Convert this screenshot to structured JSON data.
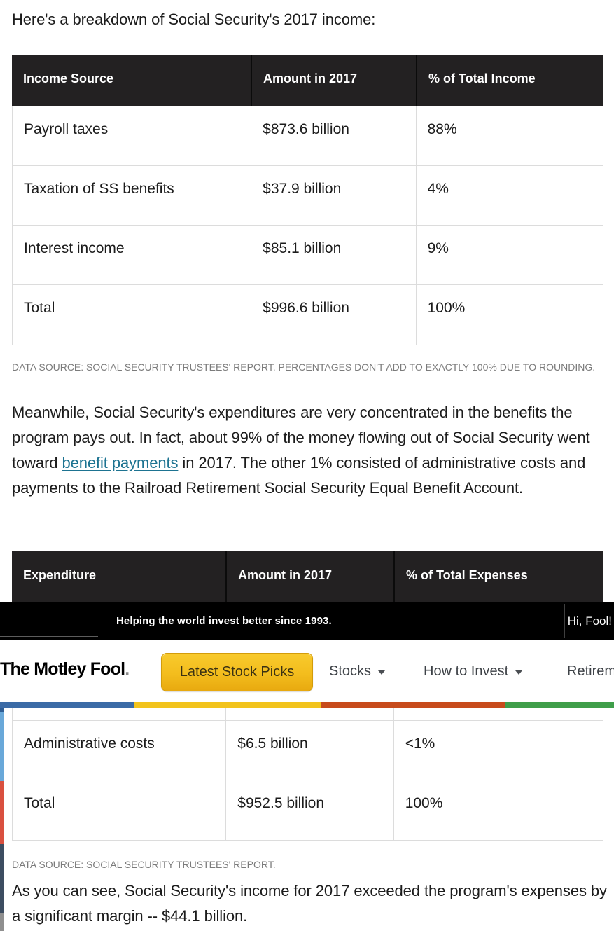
{
  "article": {
    "intro_heading": "Here's a breakdown of Social Security's 2017 income:",
    "expenditure_paragraph": {
      "part1": "Meanwhile, Social Security's expenditures are very concentrated in the benefits the program pays out. In fact, about 99% of the money flowing out of Social Security went toward ",
      "link_text": "benefit payments",
      "part2": " in 2017. The other 1% consisted of administrative costs and payments to the Railroad Retirement Social Security Equal Benefit Account."
    },
    "closing_paragraph": "As you can see, Social Security's income for 2017 exceeded the program's expenses by a significant margin -- $44.1 billion."
  },
  "income_table": {
    "headers": [
      "Income Source",
      "Amount in 2017",
      "% of Total Income"
    ],
    "rows": [
      [
        "Payroll taxes",
        "$873.6 billion",
        "88%"
      ],
      [
        "Taxation of SS benefits",
        "$37.9 billion",
        "4%"
      ],
      [
        "Interest income",
        "$85.1 billion",
        "9%"
      ],
      [
        "Total",
        "$996.6 billion",
        "100%"
      ]
    ],
    "caption": "DATA SOURCE: SOCIAL SECURITY TRUSTEES' REPORT. PERCENTAGES DON'T ADD TO EXACTLY 100% DUE TO ROUNDING."
  },
  "expense_table": {
    "headers": [
      "Expenditure",
      "Amount in 2017",
      "% of Total Expenses"
    ],
    "rows": [
      [
        "Administrative costs",
        "$6.5 billion",
        "<1%"
      ],
      [
        "Total",
        "$952.5 billion",
        "100%"
      ]
    ],
    "caption": "DATA SOURCE: SOCIAL SECURITY TRUSTEES' REPORT."
  },
  "site_header": {
    "tagline": "Helping the world invest better since 1993.",
    "greeting": "Hi, Fool!",
    "logo_text": "The Motley Fool",
    "logo_period": ".",
    "cta_button_label": "Latest Stock Picks",
    "nav_items": [
      {
        "label": "Stocks"
      },
      {
        "label": "How to Invest"
      },
      {
        "label": "Retirement"
      }
    ]
  },
  "colors": {
    "link": "#1d7391",
    "table_header_bg": "#232122",
    "cta_yellow_top": "#f8ca2d",
    "cta_yellow_bottom": "#e8a90f",
    "stripe_blue": "#3b6ba6",
    "stripe_yellow": "#f2c31c",
    "stripe_red": "#c74b1c",
    "stripe_green": "#3f9e4a",
    "share_navy": "#2f5e95",
    "share_lightblue": "#69a8d9",
    "share_red": "#d9503f",
    "share_slate": "#3d4d61",
    "share_gray": "#8f8f8f"
  }
}
